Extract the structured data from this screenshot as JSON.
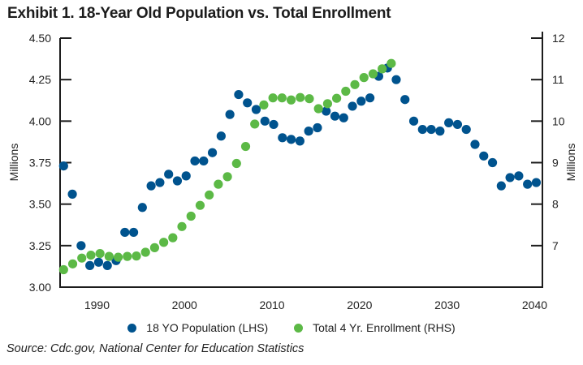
{
  "chart_data": {
    "type": "scatter",
    "title": "Exhibit 1. 18-Year Old Population vs. Total Enrollment",
    "ylabel_left": "Millions",
    "ylabel_right": "Millions",
    "xlim": [
      1985.6,
      2040.7
    ],
    "ylim_left": [
      3.0,
      4.5
    ],
    "ylim_right": [
      6,
      12
    ],
    "x_ticks": [
      "1990",
      "2000",
      "2010",
      "2020",
      "2030",
      "2040"
    ],
    "y_ticks_left": [
      "3.00",
      "3.25",
      "3.50",
      "3.75",
      "4.00",
      "4.25",
      "4.50"
    ],
    "y_ticks_right": [
      "7",
      "8",
      "9",
      "10",
      "11",
      "12"
    ],
    "grid": false,
    "legend_position": "bottom",
    "source": "Source: Cdc.gov, National Center for Education Statistics",
    "series": [
      {
        "name": "18 YO Population (LHS)",
        "axis": "left",
        "color": "#00538e",
        "x_start": 1986,
        "values": [
          3.73,
          3.56,
          3.25,
          3.13,
          3.15,
          3.13,
          3.16,
          3.33,
          3.33,
          3.48,
          3.61,
          3.63,
          3.68,
          3.64,
          3.67,
          3.76,
          3.76,
          3.81,
          3.91,
          4.04,
          4.16,
          4.11,
          4.07,
          4.0,
          3.98,
          3.9,
          3.89,
          3.88,
          3.94,
          3.96,
          4.06,
          4.03,
          4.02,
          4.09,
          4.12,
          4.14,
          4.27,
          4.32,
          4.25,
          4.13,
          4.0,
          3.95,
          3.95,
          3.94,
          3.99,
          3.98,
          3.95,
          3.86,
          3.79,
          3.75,
          3.61,
          3.66,
          3.67,
          3.62,
          3.63
        ]
      },
      {
        "name": "Total 4 Yr. Enrollment (RHS)",
        "axis": "right",
        "color": "#5cb946",
        "x_start": 1986,
        "values": [
          6.42,
          6.56,
          6.7,
          6.77,
          6.81,
          6.74,
          6.72,
          6.74,
          6.75,
          6.84,
          6.95,
          7.08,
          7.19,
          7.46,
          7.71,
          7.97,
          8.22,
          8.48,
          8.66,
          8.98,
          9.39,
          9.93,
          10.39,
          10.56,
          10.56,
          10.51,
          10.57,
          10.54,
          10.3,
          10.42,
          10.55,
          10.72,
          10.88,
          11.05,
          11.14,
          11.26,
          11.39
        ]
      }
    ]
  }
}
